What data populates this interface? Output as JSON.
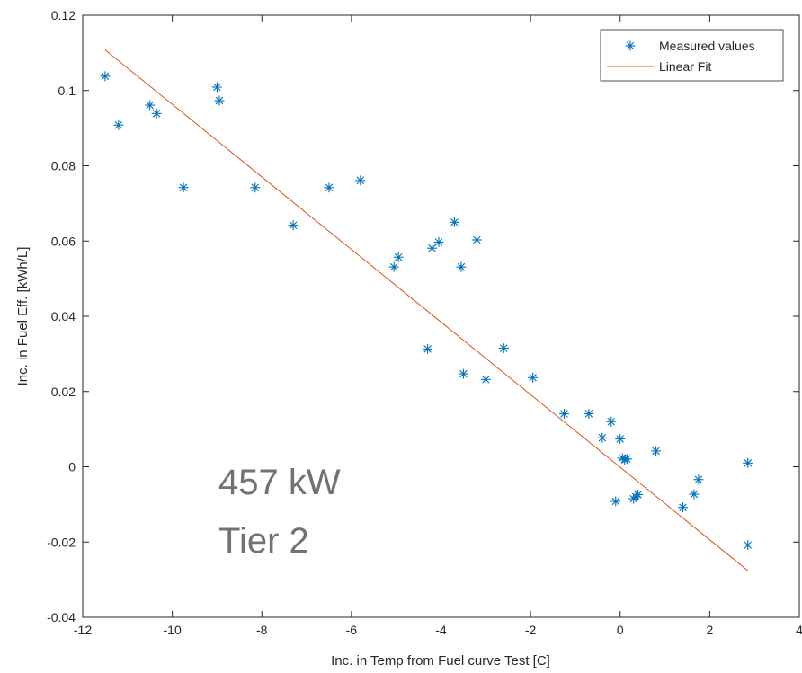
{
  "chart_data": {
    "type": "scatter",
    "title": "",
    "xlabel": "Inc. in Temp from Fuel curve Test [C]",
    "ylabel": "Inc. in Fuel Eff. [kWh/L]",
    "xlim": [
      -12,
      4
    ],
    "ylim": [
      -0.04,
      0.12
    ],
    "xticks": [
      "-12",
      "-10",
      "-8",
      "-6",
      "-4",
      "-2",
      "0",
      "2",
      "4"
    ],
    "yticks": [
      "-0.04",
      "-0.02",
      "0",
      "0.02",
      "0.04",
      "0.06",
      "0.08",
      "0.1",
      "0.12"
    ],
    "grid": false,
    "legend_position": "top-right",
    "series": [
      {
        "name": "Measured values",
        "marker": "asterisk",
        "color": "#0072BD",
        "points": [
          [
            -11.5,
            0.1038
          ],
          [
            -11.2,
            0.0908
          ],
          [
            -10.5,
            0.0961
          ],
          [
            -10.35,
            0.0939
          ],
          [
            -9.75,
            0.0742
          ],
          [
            -9.0,
            0.1009
          ],
          [
            -8.95,
            0.0973
          ],
          [
            -8.15,
            0.0742
          ],
          [
            -7.3,
            0.0642
          ],
          [
            -6.5,
            0.0742
          ],
          [
            -5.8,
            0.0761
          ],
          [
            -5.05,
            0.0531
          ],
          [
            -4.95,
            0.0557
          ],
          [
            -4.3,
            0.0313
          ],
          [
            -4.2,
            0.0581
          ],
          [
            -4.05,
            0.0597
          ],
          [
            -3.7,
            0.065
          ],
          [
            -3.55,
            0.0531
          ],
          [
            -3.5,
            0.0247
          ],
          [
            -3.2,
            0.0603
          ],
          [
            -3.0,
            0.0232
          ],
          [
            -2.6,
            0.0315
          ],
          [
            -1.95,
            0.0237
          ],
          [
            -1.25,
            0.0141
          ],
          [
            -0.7,
            0.0141
          ],
          [
            -0.4,
            0.0077
          ],
          [
            -0.2,
            0.012
          ],
          [
            -0.1,
            -0.0092
          ],
          [
            0.0,
            0.0074
          ],
          [
            0.05,
            0.0023
          ],
          [
            0.1,
            0.0019
          ],
          [
            0.15,
            0.0021
          ],
          [
            0.3,
            -0.0085
          ],
          [
            0.35,
            -0.008
          ],
          [
            0.4,
            -0.0074
          ],
          [
            0.8,
            0.0042
          ],
          [
            1.4,
            -0.0108
          ],
          [
            1.65,
            -0.0073
          ],
          [
            1.75,
            -0.0034
          ],
          [
            2.85,
            0.001
          ],
          [
            2.85,
            -0.0208
          ]
        ]
      },
      {
        "name": "Linear Fit",
        "marker": "line",
        "color": "#D95319",
        "points": [
          [
            -11.5,
            0.1108
          ],
          [
            2.85,
            -0.0276
          ]
        ]
      }
    ],
    "annotations": [
      "457 kW",
      "Tier 2"
    ]
  }
}
